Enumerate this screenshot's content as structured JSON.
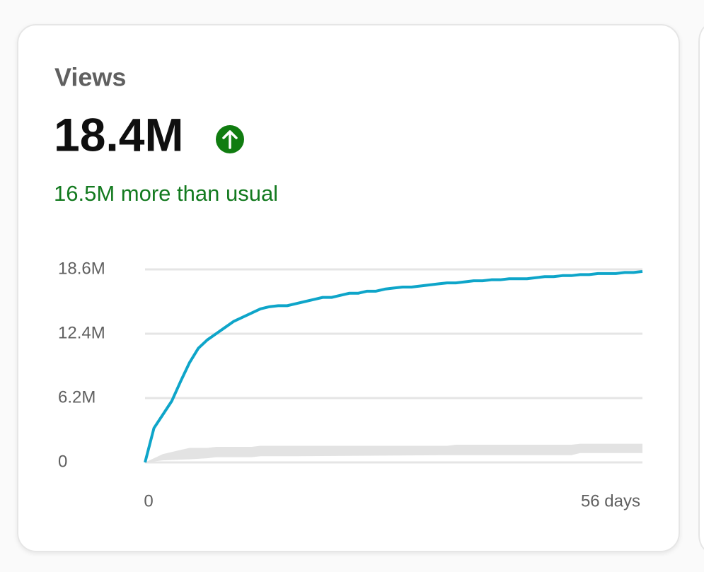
{
  "card": {
    "title": "Views",
    "value": "18.4M",
    "comparison": "16.5M more than usual"
  },
  "chart_data": {
    "type": "line",
    "x": [
      0,
      1,
      2,
      3,
      4,
      5,
      6,
      7,
      8,
      9,
      10,
      11,
      12,
      13,
      14,
      15,
      16,
      17,
      18,
      19,
      20,
      21,
      22,
      23,
      24,
      25,
      26,
      27,
      28,
      29,
      30,
      31,
      32,
      33,
      34,
      35,
      36,
      37,
      38,
      39,
      40,
      41,
      42,
      43,
      44,
      45,
      46,
      47,
      48,
      49,
      50,
      51,
      52,
      53,
      54,
      55,
      56
    ],
    "series": [
      {
        "color": "#0ea5c9",
        "values": [
          0,
          3.3,
          4.6,
          5.9,
          7.8,
          9.6,
          11.0,
          11.8,
          12.4,
          13.0,
          13.6,
          14.0,
          14.4,
          14.8,
          15.0,
          15.1,
          15.1,
          15.3,
          15.5,
          15.7,
          15.9,
          15.9,
          16.1,
          16.3,
          16.3,
          16.5,
          16.5,
          16.7,
          16.8,
          16.9,
          16.9,
          17.0,
          17.1,
          17.2,
          17.3,
          17.3,
          17.4,
          17.5,
          17.5,
          17.6,
          17.6,
          17.7,
          17.7,
          17.7,
          17.8,
          17.9,
          17.9,
          18.0,
          18.0,
          18.1,
          18.1,
          18.2,
          18.2,
          18.2,
          18.3,
          18.3,
          18.4
        ]
      }
    ],
    "band": {
      "color": "#e3e3e3",
      "x": [
        0,
        2,
        5,
        7,
        8,
        12,
        13,
        17,
        34,
        35,
        48,
        49,
        56
      ],
      "upper": [
        0,
        0.8,
        1.4,
        1.4,
        1.5,
        1.5,
        1.6,
        1.6,
        1.6,
        1.7,
        1.7,
        1.8,
        1.8
      ],
      "lower": [
        0,
        0.2,
        0.3,
        0.4,
        0.5,
        0.5,
        0.6,
        0.6,
        0.7,
        0.7,
        0.7,
        0.9,
        0.9
      ]
    },
    "xlim": [
      0,
      56
    ],
    "xticks": [
      0,
      {
        "value": 56,
        "label": "56 days"
      }
    ],
    "ylim": [
      0,
      18.6
    ],
    "yticks": [
      0,
      {
        "value": 6.2,
        "label": "6.2M"
      },
      {
        "value": 12.4,
        "label": "12.4M"
      },
      {
        "value": 18.6,
        "label": "18.6M"
      }
    ],
    "grid": true
  }
}
